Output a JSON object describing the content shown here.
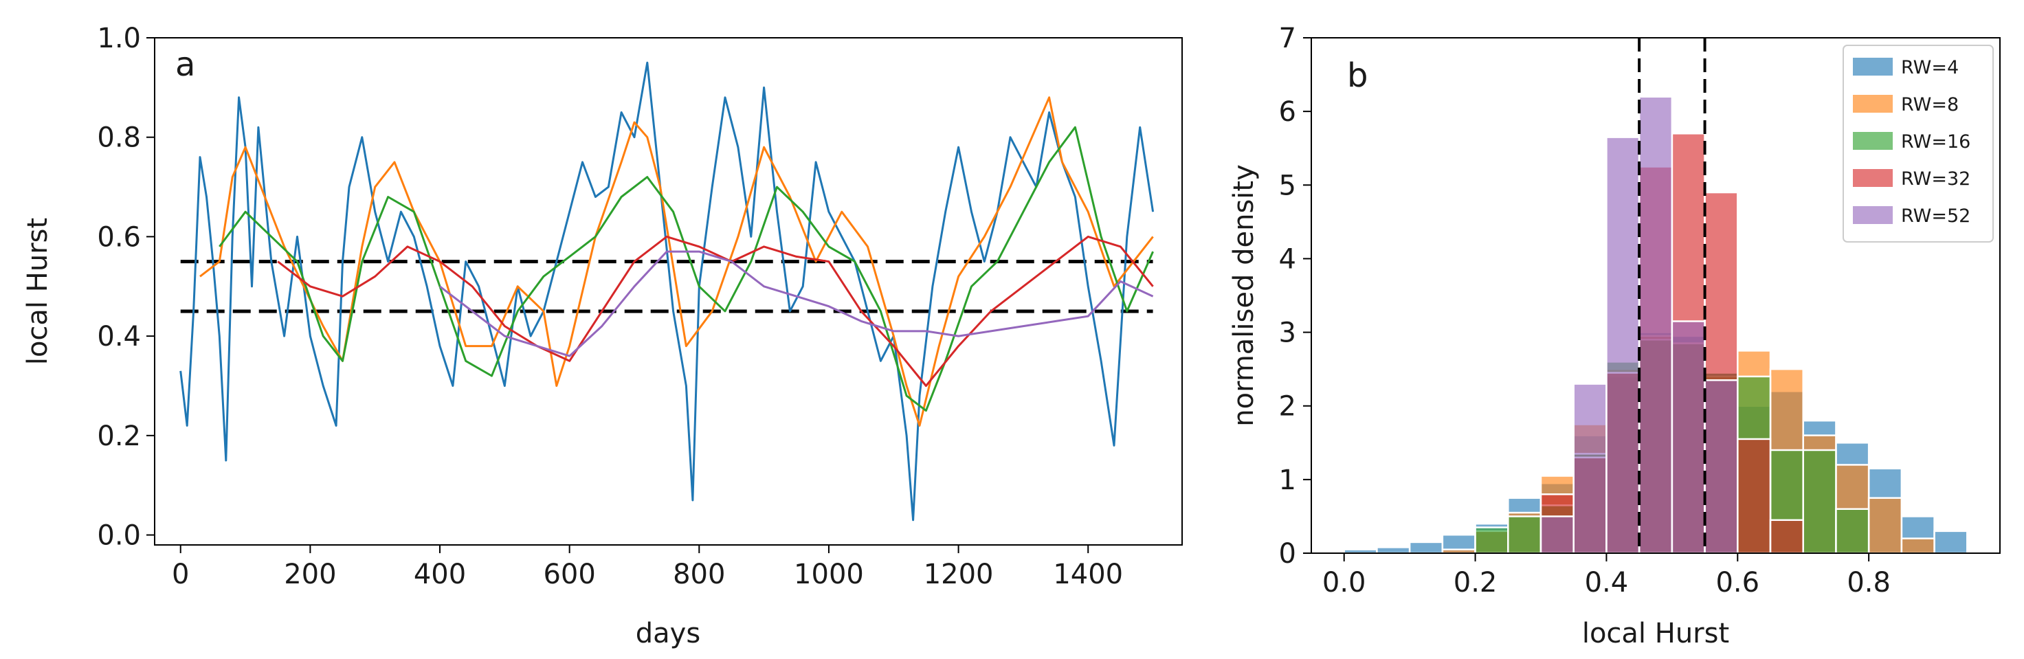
{
  "colors": {
    "rw4": "#1f77b4",
    "rw8": "#ff7f0e",
    "rw16": "#2ca02c",
    "rw32": "#d62728",
    "rw52": "#9467bd",
    "threshold": "#000000"
  },
  "chart_data": [
    {
      "type": "line",
      "panel_label": "a",
      "title": "",
      "xlabel": "days",
      "ylabel": "local Hurst",
      "xlim": [
        -40,
        1545
      ],
      "ylim": [
        -0.02,
        1.0
      ],
      "x_ticks": [
        0,
        200,
        400,
        600,
        800,
        1000,
        1200,
        1400
      ],
      "x_tick_labels": [
        "0",
        "200",
        "400",
        "600",
        "800",
        "1000",
        "1200",
        "1400"
      ],
      "y_ticks": [
        0.0,
        0.2,
        0.4,
        0.6,
        0.8,
        1.0
      ],
      "y_tick_labels": [
        "0.0",
        "0.2",
        "0.4",
        "0.6",
        "0.8",
        "1.0"
      ],
      "thresholds": [
        0.45,
        0.55
      ],
      "series": [
        {
          "name": "RW=4",
          "color_key": "rw4",
          "x": [
            0,
            10,
            20,
            30,
            40,
            50,
            60,
            70,
            80,
            90,
            100,
            110,
            120,
            140,
            160,
            180,
            200,
            220,
            240,
            250,
            260,
            280,
            300,
            320,
            340,
            360,
            380,
            400,
            420,
            440,
            460,
            480,
            500,
            520,
            540,
            560,
            580,
            600,
            620,
            640,
            660,
            680,
            700,
            720,
            740,
            760,
            780,
            790,
            800,
            820,
            840,
            860,
            880,
            900,
            920,
            940,
            960,
            980,
            1000,
            1020,
            1040,
            1060,
            1080,
            1100,
            1120,
            1130,
            1140,
            1160,
            1180,
            1200,
            1220,
            1240,
            1260,
            1280,
            1300,
            1320,
            1340,
            1360,
            1380,
            1400,
            1420,
            1440,
            1460,
            1480,
            1500
          ],
          "values": [
            0.33,
            0.22,
            0.45,
            0.76,
            0.68,
            0.55,
            0.4,
            0.15,
            0.6,
            0.88,
            0.78,
            0.5,
            0.82,
            0.55,
            0.4,
            0.6,
            0.4,
            0.3,
            0.22,
            0.55,
            0.7,
            0.8,
            0.65,
            0.55,
            0.65,
            0.6,
            0.5,
            0.38,
            0.3,
            0.55,
            0.5,
            0.4,
            0.3,
            0.5,
            0.4,
            0.45,
            0.55,
            0.65,
            0.75,
            0.68,
            0.7,
            0.85,
            0.8,
            0.95,
            0.7,
            0.45,
            0.3,
            0.07,
            0.5,
            0.7,
            0.88,
            0.78,
            0.6,
            0.9,
            0.65,
            0.45,
            0.5,
            0.75,
            0.65,
            0.6,
            0.55,
            0.45,
            0.35,
            0.4,
            0.2,
            0.03,
            0.28,
            0.5,
            0.65,
            0.78,
            0.65,
            0.55,
            0.65,
            0.8,
            0.75,
            0.7,
            0.85,
            0.75,
            0.68,
            0.5,
            0.35,
            0.18,
            0.6,
            0.82,
            0.65
          ]
        },
        {
          "name": "RW=8",
          "color_key": "rw8",
          "x": [
            30,
            60,
            80,
            100,
            130,
            160,
            190,
            220,
            250,
            280,
            300,
            330,
            360,
            400,
            440,
            480,
            520,
            560,
            580,
            600,
            640,
            680,
            700,
            720,
            740,
            780,
            820,
            860,
            900,
            940,
            980,
            1020,
            1060,
            1100,
            1120,
            1140,
            1170,
            1200,
            1240,
            1280,
            1320,
            1340,
            1360,
            1400,
            1440,
            1470,
            1500
          ],
          "values": [
            0.52,
            0.55,
            0.72,
            0.78,
            0.68,
            0.58,
            0.5,
            0.42,
            0.35,
            0.58,
            0.7,
            0.75,
            0.65,
            0.55,
            0.38,
            0.38,
            0.5,
            0.45,
            0.3,
            0.38,
            0.6,
            0.75,
            0.83,
            0.8,
            0.7,
            0.38,
            0.45,
            0.6,
            0.78,
            0.68,
            0.55,
            0.65,
            0.58,
            0.4,
            0.3,
            0.22,
            0.38,
            0.52,
            0.6,
            0.7,
            0.82,
            0.88,
            0.75,
            0.65,
            0.5,
            0.55,
            0.6
          ]
        },
        {
          "name": "RW=16",
          "color_key": "rw16",
          "x": [
            60,
            100,
            140,
            180,
            220,
            250,
            280,
            320,
            360,
            400,
            440,
            480,
            520,
            560,
            600,
            640,
            680,
            720,
            760,
            800,
            840,
            880,
            920,
            960,
            1000,
            1040,
            1080,
            1120,
            1150,
            1180,
            1220,
            1260,
            1300,
            1340,
            1380,
            1420,
            1460,
            1500
          ],
          "values": [
            0.58,
            0.65,
            0.6,
            0.55,
            0.4,
            0.35,
            0.55,
            0.68,
            0.65,
            0.5,
            0.35,
            0.32,
            0.45,
            0.52,
            0.56,
            0.6,
            0.68,
            0.72,
            0.65,
            0.5,
            0.45,
            0.55,
            0.7,
            0.65,
            0.58,
            0.55,
            0.45,
            0.28,
            0.25,
            0.35,
            0.5,
            0.55,
            0.65,
            0.75,
            0.82,
            0.6,
            0.45,
            0.57
          ]
        },
        {
          "name": "RW=32",
          "color_key": "rw32",
          "x": [
            150,
            200,
            250,
            300,
            350,
            400,
            450,
            500,
            550,
            600,
            650,
            700,
            750,
            800,
            850,
            900,
            950,
            1000,
            1050,
            1100,
            1150,
            1200,
            1250,
            1300,
            1350,
            1400,
            1450,
            1500
          ],
          "values": [
            0.55,
            0.5,
            0.48,
            0.52,
            0.58,
            0.55,
            0.5,
            0.42,
            0.38,
            0.35,
            0.45,
            0.55,
            0.6,
            0.58,
            0.55,
            0.58,
            0.56,
            0.55,
            0.45,
            0.38,
            0.3,
            0.38,
            0.45,
            0.5,
            0.55,
            0.6,
            0.58,
            0.5
          ]
        },
        {
          "name": "RW=52",
          "color_key": "rw52",
          "x": [
            400,
            450,
            500,
            550,
            600,
            650,
            700,
            750,
            800,
            850,
            900,
            950,
            1000,
            1050,
            1100,
            1150,
            1200,
            1250,
            1300,
            1350,
            1400,
            1450,
            1500
          ],
          "values": [
            0.5,
            0.45,
            0.4,
            0.38,
            0.36,
            0.42,
            0.5,
            0.57,
            0.57,
            0.55,
            0.5,
            0.48,
            0.46,
            0.43,
            0.41,
            0.41,
            0.4,
            0.41,
            0.42,
            0.43,
            0.44,
            0.51,
            0.48
          ]
        }
      ]
    },
    {
      "type": "bar",
      "subtype": "histogram",
      "panel_label": "b",
      "title": "",
      "xlabel": "local Hurst",
      "ylabel": "normalised density",
      "xlim": [
        -0.05,
        1.0
      ],
      "ylim": [
        0,
        7
      ],
      "x_ticks": [
        0.0,
        0.2,
        0.4,
        0.6,
        0.8
      ],
      "x_tick_labels": [
        "0.0",
        "0.2",
        "0.4",
        "0.6",
        "0.8"
      ],
      "y_ticks": [
        0,
        1,
        2,
        3,
        4,
        5,
        6,
        7
      ],
      "y_tick_labels": [
        "0",
        "1",
        "2",
        "3",
        "4",
        "5",
        "6",
        "7"
      ],
      "bin_width": 0.05,
      "thresholds": [
        0.45,
        0.55
      ],
      "legend_position": "top-right",
      "series": [
        {
          "name": "RW=4",
          "color_key": "rw4",
          "bin_starts": [
            0.0,
            0.05,
            0.1,
            0.15,
            0.2,
            0.25,
            0.3,
            0.35,
            0.4,
            0.45,
            0.5,
            0.55,
            0.6,
            0.65,
            0.7,
            0.75,
            0.8,
            0.85,
            0.9
          ],
          "values": [
            0.05,
            0.08,
            0.15,
            0.25,
            0.4,
            0.75,
            0.95,
            1.6,
            2.4,
            3.0,
            2.95,
            2.45,
            2.0,
            2.2,
            1.8,
            1.5,
            1.15,
            0.5,
            0.3
          ]
        },
        {
          "name": "RW=8",
          "color_key": "rw8",
          "bin_starts": [
            0.15,
            0.2,
            0.25,
            0.3,
            0.35,
            0.4,
            0.45,
            0.5,
            0.55,
            0.6,
            0.65,
            0.7,
            0.75,
            0.8,
            0.85
          ],
          "values": [
            0.05,
            0.3,
            0.55,
            1.05,
            1.75,
            2.5,
            2.95,
            2.85,
            2.4,
            2.75,
            2.5,
            1.6,
            1.2,
            0.75,
            0.2
          ]
        },
        {
          "name": "RW=16",
          "color_key": "rw16",
          "bin_starts": [
            0.2,
            0.25,
            0.3,
            0.35,
            0.4,
            0.45,
            0.5,
            0.55,
            0.6,
            0.65,
            0.7,
            0.75
          ],
          "values": [
            0.35,
            0.5,
            0.65,
            1.35,
            2.6,
            2.9,
            2.85,
            2.45,
            2.4,
            1.4,
            1.4,
            0.6
          ]
        },
        {
          "name": "RW=32",
          "color_key": "rw32",
          "bin_starts": [
            0.3,
            0.35,
            0.4,
            0.45,
            0.5,
            0.55,
            0.6,
            0.65
          ],
          "values": [
            0.8,
            1.3,
            2.45,
            5.25,
            5.7,
            4.9,
            1.55,
            0.45
          ]
        },
        {
          "name": "RW=52",
          "color_key": "rw52",
          "bin_starts": [
            0.3,
            0.35,
            0.4,
            0.45,
            0.5,
            0.55
          ],
          "values": [
            0.5,
            2.3,
            5.65,
            6.2,
            3.15,
            2.35
          ]
        }
      ]
    }
  ]
}
